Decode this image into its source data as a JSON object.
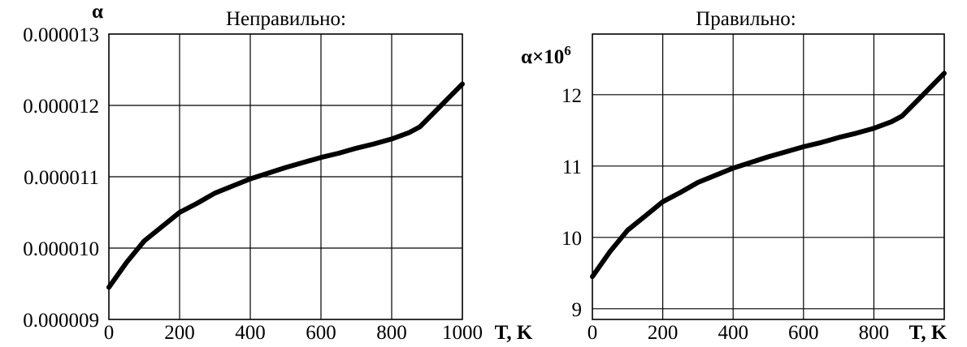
{
  "chart_data": [
    {
      "type": "line",
      "title": "Неправильно:",
      "ylabel": "α",
      "xlabel": "T, K",
      "xlim": [
        0,
        1000
      ],
      "ylim": [
        9e-06,
        1.3e-05
      ],
      "xticks": [
        0,
        200,
        400,
        600,
        800,
        1000
      ],
      "xtick_labels": [
        "0",
        "200",
        "400",
        "600",
        "800",
        "1000"
      ],
      "yticks": [
        9e-06,
        1e-05,
        1.1e-05,
        1.2e-05,
        1.3e-05
      ],
      "ytick_labels": [
        "0.000009",
        "0.000010",
        "0.000011",
        "0.000012",
        "0.000013"
      ],
      "grid": true,
      "series": [
        {
          "x": [
            0,
            50,
            100,
            150,
            200,
            250,
            300,
            350,
            400,
            450,
            500,
            550,
            600,
            650,
            700,
            750,
            800,
            850,
            880,
            920,
            960,
            1000
          ],
          "y": [
            9.45e-06,
            9.8e-06,
            1.01e-05,
            1.03e-05,
            1.05e-05,
            1.063e-05,
            1.077e-05,
            1.087e-05,
            1.097e-05,
            1.105e-05,
            1.113e-05,
            1.12e-05,
            1.127e-05,
            1.133e-05,
            1.14e-05,
            1.146e-05,
            1.153e-05,
            1.162e-05,
            1.17e-05,
            1.19e-05,
            1.21e-05,
            1.23e-05
          ]
        }
      ]
    },
    {
      "type": "line",
      "title": "Правильно:",
      "ylabel": "α×10",
      "ylabel_sup": "6",
      "xlabel": "T, K",
      "xlim": [
        0,
        1000
      ],
      "ylim": [
        8.85,
        12.85
      ],
      "xticks": [
        0,
        200,
        400,
        600,
        800
      ],
      "xtick_labels": [
        "0",
        "200",
        "400",
        "600",
        "800"
      ],
      "yticks": [
        9,
        10,
        11,
        12
      ],
      "ytick_labels": [
        "9",
        "10",
        "11",
        "12"
      ],
      "grid": true,
      "series": [
        {
          "x": [
            0,
            50,
            100,
            150,
            200,
            250,
            300,
            350,
            400,
            450,
            500,
            550,
            600,
            650,
            700,
            750,
            800,
            850,
            880,
            920,
            960,
            1000
          ],
          "y": [
            9.45,
            9.8,
            10.1,
            10.3,
            10.5,
            10.63,
            10.77,
            10.87,
            10.97,
            11.05,
            11.13,
            11.2,
            11.27,
            11.33,
            11.4,
            11.46,
            11.53,
            11.62,
            11.7,
            11.9,
            12.1,
            12.3
          ]
        }
      ]
    }
  ]
}
